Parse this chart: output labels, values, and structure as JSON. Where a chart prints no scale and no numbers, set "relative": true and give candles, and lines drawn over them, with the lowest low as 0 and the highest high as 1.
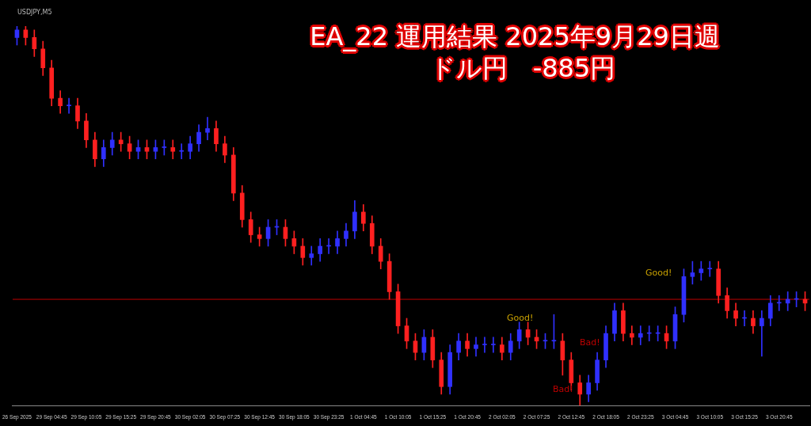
{
  "chart_data": {
    "type": "candlestick",
    "title": "EA_22 運用結果 2025年9月29日週",
    "subtitle": "ドル円　-885円",
    "relative": true,
    "categories": [
      "26 Sep 2025",
      null,
      null,
      null,
      "29 Sep 04:45",
      null,
      null,
      null,
      "29 Sep 10:05",
      null,
      null,
      null,
      "29 Sep 15:25",
      null,
      null,
      null,
      "29 Sep 20:45",
      null,
      null,
      null,
      "30 Sep 02:05",
      null,
      null,
      null,
      "30 Sep 07:25",
      null,
      null,
      null,
      "30 Sep 12:45",
      null,
      null,
      null,
      "30 Sep 18:05",
      null,
      null,
      null,
      "30 Sep 23:25",
      null,
      null,
      null,
      "1 Oct 04:45",
      null,
      null,
      null,
      "1 Oct 10:05",
      null,
      null,
      null,
      "1 Oct 15:25",
      null,
      null,
      null,
      "1 Oct 20:45",
      null,
      null,
      null,
      "2 Oct 02:05",
      null,
      null,
      null,
      "2 Oct 07:25",
      null,
      null,
      null,
      "2 Oct 12:45",
      null,
      null,
      null,
      "2 Oct 18:05",
      null,
      null,
      null,
      "2 Oct 23:25",
      null,
      null,
      null,
      "3 Oct 04:45",
      null,
      null,
      null,
      "3 Oct 10:05",
      null,
      null,
      null,
      "3 Oct 15:25",
      null,
      null,
      null,
      "3 Oct 20:45",
      null,
      null,
      null
    ],
    "ohlc": [
      [
        0.97,
        1.0,
        0.95,
        0.99
      ],
      [
        0.99,
        1.0,
        0.95,
        0.97
      ],
      [
        0.97,
        0.99,
        0.92,
        0.94
      ],
      [
        0.94,
        0.96,
        0.87,
        0.89
      ],
      [
        0.89,
        0.91,
        0.79,
        0.81
      ],
      [
        0.81,
        0.83,
        0.77,
        0.79
      ],
      [
        0.79,
        0.81,
        0.77,
        0.79
      ],
      [
        0.79,
        0.81,
        0.73,
        0.75
      ],
      [
        0.75,
        0.77,
        0.68,
        0.7
      ],
      [
        0.7,
        0.72,
        0.63,
        0.65
      ],
      [
        0.65,
        0.7,
        0.63,
        0.68
      ],
      [
        0.68,
        0.72,
        0.66,
        0.7
      ],
      [
        0.7,
        0.72,
        0.67,
        0.69
      ],
      [
        0.69,
        0.71,
        0.65,
        0.67
      ],
      [
        0.67,
        0.7,
        0.65,
        0.68
      ],
      [
        0.68,
        0.7,
        0.65,
        0.67
      ],
      [
        0.67,
        0.7,
        0.65,
        0.68
      ],
      [
        0.68,
        0.7,
        0.66,
        0.68
      ],
      [
        0.68,
        0.7,
        0.65,
        0.67
      ],
      [
        0.67,
        0.69,
        0.65,
        0.67
      ],
      [
        0.67,
        0.71,
        0.65,
        0.69
      ],
      [
        0.69,
        0.74,
        0.67,
        0.72
      ],
      [
        0.72,
        0.76,
        0.7,
        0.73
      ],
      [
        0.73,
        0.75,
        0.67,
        0.69
      ],
      [
        0.69,
        0.71,
        0.64,
        0.66
      ],
      [
        0.66,
        0.68,
        0.54,
        0.56
      ],
      [
        0.56,
        0.58,
        0.47,
        0.49
      ],
      [
        0.49,
        0.51,
        0.43,
        0.45
      ],
      [
        0.45,
        0.47,
        0.42,
        0.44
      ],
      [
        0.44,
        0.49,
        0.42,
        0.47
      ],
      [
        0.47,
        0.49,
        0.45,
        0.47
      ],
      [
        0.47,
        0.49,
        0.42,
        0.44
      ],
      [
        0.44,
        0.46,
        0.4,
        0.42
      ],
      [
        0.42,
        0.44,
        0.37,
        0.39
      ],
      [
        0.39,
        0.42,
        0.37,
        0.4
      ],
      [
        0.4,
        0.44,
        0.38,
        0.42
      ],
      [
        0.42,
        0.44,
        0.4,
        0.42
      ],
      [
        0.42,
        0.46,
        0.4,
        0.44
      ],
      [
        0.44,
        0.48,
        0.42,
        0.46
      ],
      [
        0.46,
        0.54,
        0.44,
        0.51
      ],
      [
        0.51,
        0.53,
        0.46,
        0.48
      ],
      [
        0.48,
        0.5,
        0.4,
        0.42
      ],
      [
        0.42,
        0.44,
        0.36,
        0.38
      ],
      [
        0.38,
        0.4,
        0.28,
        0.3
      ],
      [
        0.3,
        0.32,
        0.19,
        0.21
      ],
      [
        0.21,
        0.23,
        0.15,
        0.17
      ],
      [
        0.17,
        0.19,
        0.12,
        0.14
      ],
      [
        0.14,
        0.2,
        0.12,
        0.18
      ],
      [
        0.18,
        0.2,
        0.1,
        0.12
      ],
      [
        0.12,
        0.14,
        0.03,
        0.05
      ],
      [
        0.05,
        0.16,
        0.03,
        0.14
      ],
      [
        0.14,
        0.19,
        0.12,
        0.17
      ],
      [
        0.17,
        0.19,
        0.13,
        0.15
      ],
      [
        0.15,
        0.18,
        0.13,
        0.16
      ],
      [
        0.16,
        0.18,
        0.14,
        0.16
      ],
      [
        0.16,
        0.18,
        0.14,
        0.16
      ],
      [
        0.16,
        0.18,
        0.12,
        0.14
      ],
      [
        0.14,
        0.19,
        0.12,
        0.17
      ],
      [
        0.17,
        0.22,
        0.15,
        0.2
      ],
      [
        0.2,
        0.22,
        0.16,
        0.18
      ],
      [
        0.18,
        0.2,
        0.15,
        0.17
      ],
      [
        0.17,
        0.19,
        0.15,
        0.17
      ],
      [
        0.17,
        0.24,
        0.15,
        0.17
      ],
      [
        0.17,
        0.19,
        0.08,
        0.12
      ],
      [
        0.12,
        0.14,
        0.04,
        0.06
      ],
      [
        0.06,
        0.08,
        0.0,
        0.03
      ],
      [
        0.03,
        0.08,
        0.01,
        0.06
      ],
      [
        0.06,
        0.14,
        0.04,
        0.12
      ],
      [
        0.12,
        0.21,
        0.1,
        0.19
      ],
      [
        0.19,
        0.27,
        0.17,
        0.25
      ],
      [
        0.25,
        0.27,
        0.17,
        0.19
      ],
      [
        0.19,
        0.21,
        0.16,
        0.18
      ],
      [
        0.18,
        0.21,
        0.16,
        0.19
      ],
      [
        0.19,
        0.21,
        0.17,
        0.19
      ],
      [
        0.19,
        0.21,
        0.17,
        0.19
      ],
      [
        0.19,
        0.21,
        0.15,
        0.17
      ],
      [
        0.17,
        0.26,
        0.15,
        0.24
      ],
      [
        0.24,
        0.36,
        0.22,
        0.34
      ],
      [
        0.34,
        0.38,
        0.32,
        0.35
      ],
      [
        0.35,
        0.38,
        0.33,
        0.36
      ],
      [
        0.36,
        0.38,
        0.34,
        0.36
      ],
      [
        0.36,
        0.38,
        0.27,
        0.29
      ],
      [
        0.29,
        0.31,
        0.23,
        0.25
      ],
      [
        0.25,
        0.27,
        0.21,
        0.23
      ],
      [
        0.23,
        0.25,
        0.21,
        0.23
      ],
      [
        0.23,
        0.25,
        0.19,
        0.21
      ],
      [
        0.21,
        0.25,
        0.13,
        0.23
      ],
      [
        0.23,
        0.29,
        0.21,
        0.27
      ],
      [
        0.27,
        0.29,
        0.25,
        0.27
      ],
      [
        0.27,
        0.3,
        0.25,
        0.28
      ],
      [
        0.28,
        0.3,
        0.26,
        0.28
      ],
      [
        0.28,
        0.3,
        0.25,
        0.27
      ]
    ],
    "colors": [
      "#3030ff",
      "#ff2020",
      "#ff2020",
      "#ff2020",
      "#ff2020",
      "#ff2020",
      "#3030ff",
      "#ff2020",
      "#ff2020",
      "#ff2020",
      "#3030ff",
      "#3030ff",
      "#ff2020",
      "#ff2020",
      "#3030ff",
      "#ff2020",
      "#3030ff",
      "#3030ff",
      "#ff2020",
      "#3030ff",
      "#3030ff",
      "#3030ff",
      "#3030ff",
      "#ff2020",
      "#ff2020",
      "#ff2020",
      "#ff2020",
      "#ff2020",
      "#ff2020",
      "#3030ff",
      "#3030ff",
      "#ff2020",
      "#ff2020",
      "#ff2020",
      "#3030ff",
      "#3030ff",
      "#3030ff",
      "#3030ff",
      "#3030ff",
      "#3030ff",
      "#ff2020",
      "#ff2020",
      "#ff2020",
      "#ff2020",
      "#ff2020",
      "#ff2020",
      "#ff2020",
      "#3030ff",
      "#ff2020",
      "#ff2020",
      "#3030ff",
      "#3030ff",
      "#ff2020",
      "#3030ff",
      "#3030ff",
      "#3030ff",
      "#ff2020",
      "#3030ff",
      "#3030ff",
      "#ff2020",
      "#ff2020",
      "#3030ff",
      "#3030ff",
      "#ff2020",
      "#ff2020",
      "#ff2020",
      "#3030ff",
      "#3030ff",
      "#3030ff",
      "#3030ff",
      "#ff2020",
      "#ff2020",
      "#3030ff",
      "#3030ff",
      "#3030ff",
      "#ff2020",
      "#3030ff",
      "#3030ff",
      "#3030ff",
      "#3030ff",
      "#3030ff",
      "#ff2020",
      "#ff2020",
      "#ff2020",
      "#3030ff",
      "#ff2020",
      "#3030ff",
      "#3030ff",
      "#3030ff",
      "#3030ff",
      "#3030ff",
      "#ff2020"
    ],
    "ref_lines": [
      {
        "axis": "y",
        "value": 0.28,
        "color": "#c00000"
      }
    ],
    "annotations": [
      "USDJPY,M5",
      "Good!",
      "Good!",
      "Bad!",
      "Bad!"
    ]
  }
}
